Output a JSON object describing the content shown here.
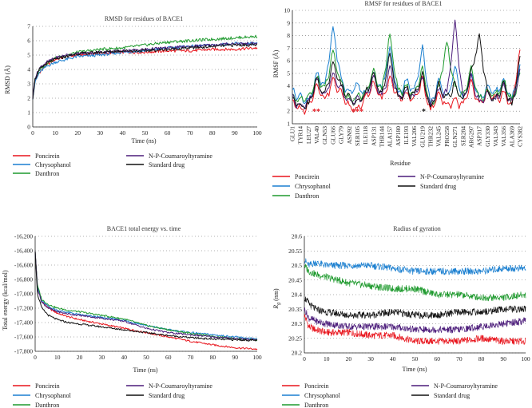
{
  "colors": {
    "poncirein": "#e8131b",
    "chrysophanol": "#1a7fd0",
    "danthron": "#1f9a2e",
    "coumaroyl": "#4b1b7a",
    "standard": "#111111"
  },
  "legend": [
    "Poncirein",
    "Chrysophanol",
    "Danthron",
    "N-P-Coumaroyltyramine",
    "Standard drug"
  ],
  "chart_data": [
    {
      "type": "line",
      "title": "RMSD for residues of BACE1",
      "xlabel": "Time (ns)",
      "ylabel": "RMSD (Å)",
      "xlim": [
        0,
        100
      ],
      "ylim": [
        0,
        7
      ],
      "xticks": [
        "0",
        "10",
        "20",
        "30",
        "40",
        "50",
        "60",
        "70",
        "80",
        "90",
        "100"
      ],
      "yticks": [
        "0",
        "1",
        "2",
        "3",
        "4",
        "5",
        "6",
        "7"
      ],
      "series": [
        {
          "name": "Poncirein",
          "key": "poncirein",
          "x": [
            0,
            1,
            3,
            6,
            10,
            15,
            20,
            30,
            40,
            50,
            60,
            70,
            80,
            90,
            100
          ],
          "y": [
            2.0,
            3.2,
            3.8,
            4.3,
            4.7,
            4.9,
            5.0,
            5.1,
            5.2,
            5.2,
            5.3,
            5.3,
            5.4,
            5.4,
            5.5
          ]
        },
        {
          "name": "Chrysophanol",
          "key": "chrysophanol",
          "x": [
            0,
            1,
            3,
            6,
            10,
            15,
            20,
            30,
            40,
            50,
            60,
            70,
            80,
            90,
            100
          ],
          "y": [
            2.0,
            3.1,
            3.8,
            4.2,
            4.5,
            4.7,
            4.9,
            5.0,
            5.2,
            5.3,
            5.5,
            5.6,
            5.7,
            5.8,
            5.8
          ]
        },
        {
          "name": "Danthron",
          "key": "danthron",
          "x": [
            0,
            1,
            3,
            6,
            10,
            15,
            20,
            30,
            40,
            50,
            60,
            70,
            80,
            90,
            100
          ],
          "y": [
            2.0,
            3.3,
            4.0,
            4.4,
            4.8,
            5.0,
            5.2,
            5.4,
            5.5,
            5.7,
            5.9,
            6.0,
            6.1,
            6.2,
            6.3
          ]
        },
        {
          "name": "N-P-Coumaroyltyramine",
          "key": "coumaroyl",
          "x": [
            0,
            1,
            3,
            6,
            10,
            15,
            20,
            30,
            40,
            50,
            60,
            70,
            80,
            90,
            100
          ],
          "y": [
            2.0,
            3.4,
            4.1,
            4.5,
            4.8,
            5.0,
            5.1,
            5.2,
            5.3,
            5.4,
            5.5,
            5.6,
            5.7,
            5.8,
            5.8
          ]
        },
        {
          "name": "Standard drug",
          "key": "standard",
          "x": [
            0,
            1,
            3,
            6,
            10,
            15,
            20,
            30,
            40,
            50,
            60,
            70,
            80,
            90,
            100
          ],
          "y": [
            2.0,
            3.3,
            4.0,
            4.4,
            4.7,
            4.9,
            5.1,
            5.2,
            5.3,
            5.3,
            5.4,
            5.5,
            5.6,
            5.7,
            5.7
          ]
        }
      ]
    },
    {
      "type": "line",
      "title": "RMSF for residues of BACE1",
      "xlabel": "Residue",
      "ylabel": "RMSF (Å)",
      "ylim": [
        1,
        10
      ],
      "yticks": [
        "1",
        "2",
        "3",
        "4",
        "5",
        "6",
        "7",
        "8",
        "9",
        "10"
      ],
      "categories": [
        "GLU1",
        "TYR14",
        "LEU27",
        "VAL40",
        "GLN53",
        "GLU66",
        "GLY79",
        "ASN92",
        "SER105",
        "ILE118",
        "ASP131",
        "THR144",
        "ALA157",
        "ASP180",
        "ILE193",
        "VAL206",
        "GLU219",
        "THR232",
        "VAL245",
        "PRO258",
        "GLN271",
        "SER284",
        "ARG297",
        "ASP317",
        "GLY330",
        "VAL343",
        "VAL356",
        "ALA369",
        "CYS382"
      ],
      "annotations": [
        "**",
        "***",
        "*"
      ],
      "series": [
        {
          "name": "Poncirein",
          "key": "poncirein",
          "values": [
            3.0,
            2.2,
            2.6,
            4.3,
            3.1,
            4.6,
            3.6,
            2.6,
            2.3,
            3.2,
            4.4,
            3.0,
            4.8,
            3.2,
            3.5,
            3.1,
            4.6,
            2.2,
            3.6,
            2.6,
            3.1,
            2.6,
            4.4,
            2.6,
            3.6,
            3.1,
            3.6,
            2.6,
            7.0
          ]
        },
        {
          "name": "Chrysophanol",
          "key": "chrysophanol",
          "values": [
            3.8,
            3.3,
            2.9,
            5.1,
            4.1,
            8.8,
            4.6,
            3.6,
            4.3,
            3.6,
            5.1,
            3.9,
            7.1,
            3.5,
            4.6,
            3.7,
            7.2,
            2.6,
            4.6,
            3.1,
            5.6,
            3.1,
            5.1,
            3.1,
            4.1,
            3.6,
            4.6,
            3.1,
            5.6
          ]
        },
        {
          "name": "Danthron",
          "key": "danthron",
          "values": [
            3.5,
            3.0,
            3.2,
            4.8,
            3.9,
            6.8,
            4.3,
            3.1,
            3.3,
            3.6,
            5.5,
            3.6,
            8.3,
            3.6,
            4.1,
            3.5,
            5.6,
            2.4,
            4.1,
            7.6,
            4.1,
            3.3,
            5.6,
            3.1,
            3.8,
            3.3,
            4.6,
            2.9,
            5.1
          ]
        },
        {
          "name": "N-P-Coumaroyltyramine",
          "key": "coumaroyl",
          "values": [
            3.2,
            2.6,
            2.8,
            4.5,
            3.4,
            5.1,
            3.9,
            2.9,
            3.1,
            3.3,
            4.8,
            3.3,
            5.6,
            3.3,
            3.8,
            3.3,
            4.8,
            2.6,
            3.8,
            3.6,
            9.1,
            3.1,
            4.9,
            2.9,
            3.5,
            3.1,
            4.1,
            2.8,
            5.3
          ]
        },
        {
          "name": "Standard drug",
          "key": "standard",
          "values": [
            3.3,
            2.5,
            2.7,
            4.6,
            3.5,
            6.1,
            4.1,
            3.3,
            2.9,
            3.5,
            5.1,
            3.4,
            6.6,
            3.3,
            3.9,
            3.3,
            5.1,
            2.3,
            4.3,
            3.1,
            4.3,
            2.9,
            5.3,
            8.1,
            3.5,
            3.1,
            4.3,
            2.6,
            6.3
          ]
        }
      ]
    },
    {
      "type": "line",
      "title": "BACE1 total energy vs. time",
      "xlabel": "Time (ns)",
      "ylabel": "Total energy (kcal/mol)",
      "xlim": [
        0,
        100
      ],
      "ylim": [
        -17800,
        -16200
      ],
      "xticks": [
        "0",
        "10",
        "20",
        "30",
        "40",
        "50",
        "60",
        "70",
        "80",
        "90",
        "100"
      ],
      "yticks": [
        "-16,200",
        "-16,400",
        "-16,600",
        "-16,800",
        "-17,000",
        "-17,200",
        "-17,400",
        "-17,600",
        "-17,800"
      ],
      "series": [
        {
          "name": "Poncirein",
          "key": "poncirein",
          "x": [
            0,
            1,
            3,
            6,
            10,
            15,
            20,
            30,
            40,
            50,
            60,
            70,
            80,
            90,
            100
          ],
          "y": [
            -16400,
            -16900,
            -17100,
            -17200,
            -17270,
            -17320,
            -17360,
            -17420,
            -17480,
            -17540,
            -17600,
            -17660,
            -17710,
            -17750,
            -17770
          ]
        },
        {
          "name": "Chrysophanol",
          "key": "chrysophanol",
          "x": [
            0,
            1,
            3,
            6,
            10,
            15,
            20,
            30,
            40,
            50,
            60,
            70,
            80,
            90,
            100
          ],
          "y": [
            -16400,
            -16900,
            -17100,
            -17180,
            -17230,
            -17260,
            -17290,
            -17330,
            -17370,
            -17440,
            -17500,
            -17540,
            -17570,
            -17600,
            -17630
          ]
        },
        {
          "name": "Danthron",
          "key": "danthron",
          "x": [
            0,
            1,
            3,
            6,
            10,
            15,
            20,
            30,
            40,
            50,
            60,
            70,
            80,
            90,
            100
          ],
          "y": [
            -16400,
            -16880,
            -17080,
            -17150,
            -17200,
            -17230,
            -17250,
            -17300,
            -17350,
            -17440,
            -17500,
            -17550,
            -17590,
            -17620,
            -17640
          ]
        },
        {
          "name": "N-P-Coumaroyltyramine",
          "key": "coumaroyl",
          "x": [
            0,
            1,
            3,
            6,
            10,
            15,
            20,
            30,
            40,
            50,
            60,
            70,
            80,
            90,
            100
          ],
          "y": [
            -16400,
            -16920,
            -17120,
            -17200,
            -17250,
            -17280,
            -17300,
            -17340,
            -17380,
            -17480,
            -17540,
            -17570,
            -17600,
            -17620,
            -17640
          ]
        },
        {
          "name": "Standard drug",
          "key": "standard",
          "x": [
            0,
            1,
            3,
            6,
            10,
            15,
            20,
            30,
            40,
            50,
            60,
            70,
            80,
            90,
            100
          ],
          "y": [
            -16400,
            -17000,
            -17200,
            -17300,
            -17360,
            -17400,
            -17420,
            -17460,
            -17500,
            -17540,
            -17580,
            -17610,
            -17630,
            -17640,
            -17650
          ]
        }
      ]
    },
    {
      "type": "line",
      "title": "Radius of gyration",
      "xlabel": "Time (ns)",
      "ylabel": "R_g (nm)",
      "ylabel_main": "R",
      "ylabel_sub": "g",
      "ylabel_unit": "(nm)",
      "xlim": [
        0,
        100
      ],
      "ylim": [
        20.2,
        20.6
      ],
      "xticks": [
        "0",
        "10",
        "20",
        "30",
        "40",
        "50",
        "60",
        "70",
        "80",
        "90",
        "100"
      ],
      "yticks": [
        "20.2",
        "20.25",
        "20.3",
        "20.35",
        "20.4",
        "20.45",
        "20.5",
        "20.55",
        "20.6"
      ],
      "series": [
        {
          "name": "Poncirein",
          "key": "poncirein",
          "x": [
            0,
            2,
            5,
            10,
            20,
            30,
            40,
            50,
            60,
            70,
            80,
            90,
            100
          ],
          "y": [
            20.33,
            20.29,
            20.28,
            20.27,
            20.27,
            20.26,
            20.26,
            20.24,
            20.24,
            20.24,
            20.25,
            20.24,
            20.24
          ]
        },
        {
          "name": "Chrysophanol",
          "key": "chrysophanol",
          "x": [
            0,
            2,
            5,
            10,
            20,
            30,
            40,
            50,
            60,
            70,
            80,
            90,
            100
          ],
          "y": [
            20.52,
            20.5,
            20.51,
            20.5,
            20.5,
            20.5,
            20.49,
            20.48,
            20.48,
            20.48,
            20.48,
            20.49,
            20.49
          ]
        },
        {
          "name": "Danthron",
          "key": "danthron",
          "x": [
            0,
            2,
            5,
            10,
            20,
            30,
            40,
            50,
            60,
            70,
            80,
            90,
            100
          ],
          "y": [
            20.5,
            20.48,
            20.47,
            20.46,
            20.44,
            20.43,
            20.42,
            20.42,
            20.4,
            20.4,
            20.39,
            20.39,
            20.4
          ]
        },
        {
          "name": "N-P-Coumaroyltyramine",
          "key": "coumaroyl",
          "x": [
            0,
            2,
            5,
            10,
            20,
            30,
            40,
            50,
            60,
            70,
            80,
            90,
            100
          ],
          "y": [
            20.35,
            20.32,
            20.31,
            20.3,
            20.29,
            20.29,
            20.29,
            20.28,
            20.28,
            20.28,
            20.29,
            20.3,
            20.31
          ]
        },
        {
          "name": "Standard drug",
          "key": "standard",
          "x": [
            0,
            2,
            5,
            10,
            20,
            30,
            40,
            50,
            60,
            70,
            80,
            90,
            100
          ],
          "y": [
            20.39,
            20.37,
            20.35,
            20.34,
            20.33,
            20.33,
            20.34,
            20.33,
            20.33,
            20.34,
            20.34,
            20.35,
            20.35
          ]
        }
      ]
    }
  ]
}
